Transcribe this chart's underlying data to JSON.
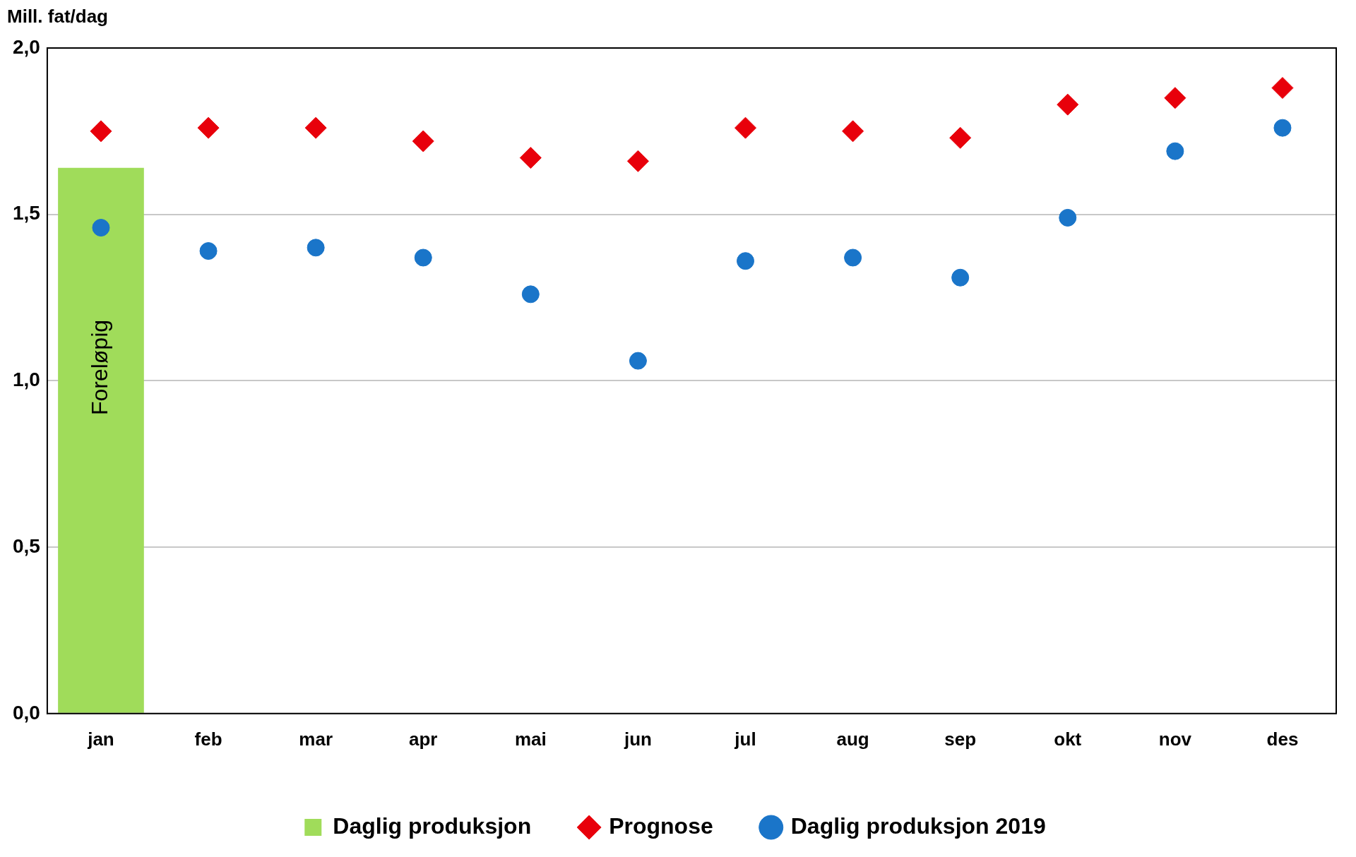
{
  "chart_data": {
    "type": "bar",
    "ylabel": "Mill. fat/dag",
    "categories": [
      "jan",
      "feb",
      "mar",
      "apr",
      "mai",
      "jun",
      "jul",
      "aug",
      "sep",
      "okt",
      "nov",
      "des"
    ],
    "series": [
      {
        "name": "Daglig produksjon",
        "color": "#a0dc5a",
        "values": [
          1.64,
          null,
          null,
          null,
          null,
          null,
          null,
          null,
          null,
          null,
          null,
          null
        ]
      },
      {
        "name": "Prognose",
        "type": "scatter",
        "marker": "diamond",
        "color": "#e8000b",
        "values": [
          1.75,
          1.76,
          1.76,
          1.72,
          1.67,
          1.66,
          1.76,
          1.75,
          1.73,
          1.83,
          1.85,
          1.88
        ]
      },
      {
        "name": "Daglig produksjon 2019",
        "type": "scatter",
        "marker": "circle",
        "color": "#1a75c9",
        "values": [
          1.46,
          1.39,
          1.4,
          1.37,
          1.26,
          1.06,
          1.36,
          1.37,
          1.31,
          1.49,
          1.69,
          1.76
        ]
      }
    ],
    "ylim": [
      0,
      2
    ],
    "yticks": [
      {
        "value": 0,
        "label": "0,0"
      },
      {
        "value": 0.5,
        "label": "0,5"
      },
      {
        "value": 1,
        "label": "1,0"
      },
      {
        "value": 1.5,
        "label": "1,5"
      },
      {
        "value": 2,
        "label": "2,0"
      }
    ],
    "grid": "y",
    "legend": "bottom",
    "annotations": [
      "Foreløpig"
    ]
  }
}
